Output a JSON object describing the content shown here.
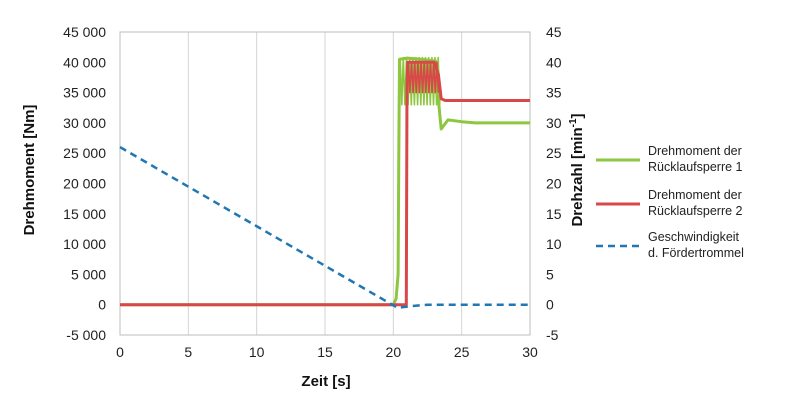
{
  "chart_data": {
    "type": "line",
    "xlabel": "Zeit  [s]",
    "ylabel_left": "Drehmoment  [Nm]",
    "ylabel_right_base": "Drehzahl  [min",
    "ylabel_right_sup": "-1",
    "ylabel_right_end": "]",
    "xlim": [
      0,
      30
    ],
    "ylim_left": [
      -5000,
      45000
    ],
    "ylim_right": [
      -5,
      45
    ],
    "x_ticks": [
      0,
      5,
      10,
      15,
      20,
      25,
      30
    ],
    "x_tick_labels": [
      "0",
      "5",
      "10",
      "15",
      "20",
      "25",
      "30"
    ],
    "y_left_ticks": [
      -5000,
      0,
      5000,
      10000,
      15000,
      20000,
      25000,
      30000,
      35000,
      40000,
      45000
    ],
    "y_left_tick_labels": [
      "-5 000",
      "0",
      "5 000",
      "10 000",
      "15 000",
      "20 000",
      "25 000",
      "30 000",
      "35 000",
      "40 000",
      "45 000"
    ],
    "y_right_ticks": [
      -5,
      0,
      5,
      10,
      15,
      20,
      25,
      30,
      35,
      40,
      45
    ],
    "y_right_tick_labels": [
      "-5",
      "0",
      "5",
      "10",
      "15",
      "20",
      "25",
      "30",
      "35",
      "40",
      "45"
    ],
    "grid": "vertical",
    "legend_position": "right",
    "series": [
      {
        "name": "Drehmoment der Rücklaufsperre 1",
        "legend_lines": [
          "Drehmoment der",
          "Rücklaufsperre 1"
        ],
        "axis": "left",
        "color": "#8DC63F",
        "style": "solid",
        "points": [
          [
            0,
            0
          ],
          [
            20,
            0
          ],
          [
            20.2,
            1000
          ],
          [
            20.35,
            5000
          ],
          [
            20.4,
            25000
          ],
          [
            20.45,
            40500
          ],
          [
            21.0,
            40700
          ],
          [
            22.0,
            40500
          ],
          [
            23.1,
            40200
          ],
          [
            23.2,
            36000
          ],
          [
            23.5,
            29000
          ],
          [
            24,
            30500
          ],
          [
            25,
            30200
          ],
          [
            26,
            30000
          ],
          [
            30,
            30000
          ]
        ],
        "oscillation": {
          "from": 20.5,
          "to": 23.4,
          "low": 33000,
          "high": 40800
        }
      },
      {
        "name": "Drehmoment der Rücklaufsperre 2",
        "legend_lines": [
          "Drehmoment der",
          "Rücklaufsperre 2"
        ],
        "axis": "left",
        "color": "#D94848",
        "style": "solid",
        "points": [
          [
            0,
            0
          ],
          [
            20.95,
            0
          ],
          [
            21.0,
            36000
          ],
          [
            21.05,
            40000
          ],
          [
            22.0,
            40000
          ],
          [
            23.0,
            40000
          ],
          [
            23.3,
            38000
          ],
          [
            23.5,
            34000
          ],
          [
            23.8,
            33700
          ],
          [
            30,
            33700
          ]
        ],
        "oscillation": {
          "from": 21.1,
          "to": 23.3,
          "low": 35000,
          "high": 40000
        }
      },
      {
        "name": "Geschwindigkeit d. Fördertrommel",
        "legend_lines": [
          "Geschwindigkeit",
          "d. Fördertrommel"
        ],
        "axis": "right",
        "color": "#1F77B4",
        "style": "dashed",
        "points": [
          [
            0,
            26
          ],
          [
            20.3,
            -0.5
          ],
          [
            21.5,
            -0.2
          ],
          [
            22.5,
            0
          ],
          [
            30,
            0
          ]
        ]
      }
    ]
  }
}
